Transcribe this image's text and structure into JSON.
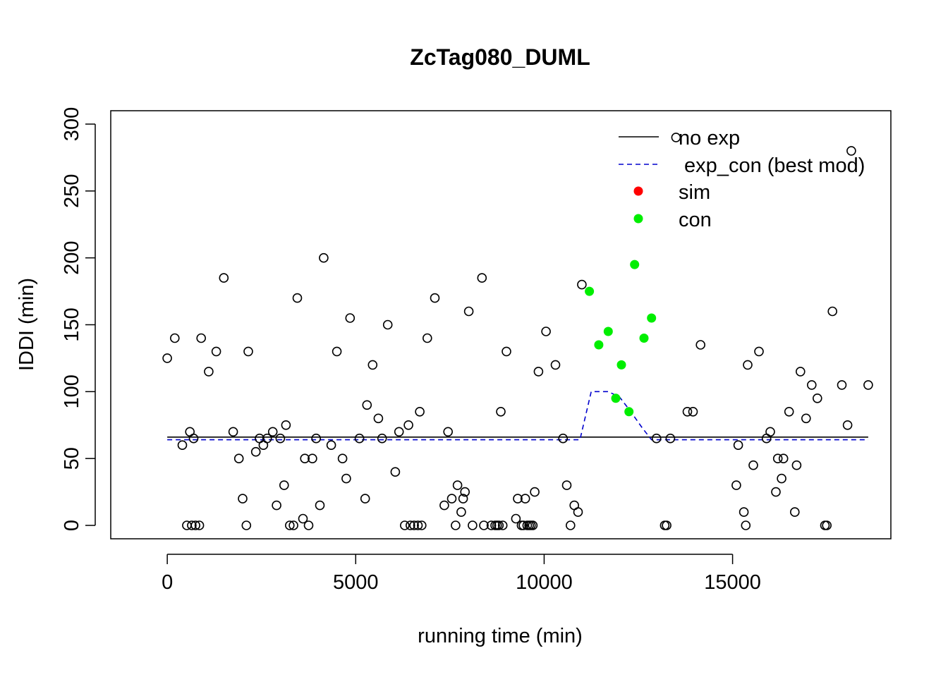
{
  "chart_data": {
    "type": "scatter",
    "title": "ZcTag080_DUML",
    "xlabel": "running time (min)",
    "ylabel": "IDDI (min)",
    "xlim": [
      -1500,
      19200
    ],
    "ylim": [
      -10,
      310
    ],
    "xticks": [
      0,
      5000,
      10000,
      15000
    ],
    "yticks": [
      0,
      50,
      100,
      150,
      200,
      250,
      300
    ],
    "grid": false,
    "legend_position": "top-right",
    "colors": {
      "points": "#000000",
      "no_exp": "#000000",
      "exp_con": "#0000CD",
      "sim": "#FF0000",
      "con": "#00EE00"
    },
    "legend": [
      {
        "label": "no exp",
        "kind": "line-solid",
        "color": "#000000"
      },
      {
        "label": " exp_con (best mod)",
        "kind": "line-dashed",
        "color": "#0000CD"
      },
      {
        "label": "sim",
        "kind": "dot",
        "color": "#FF0000"
      },
      {
        "label": "con",
        "kind": "dot",
        "color": "#00EE00"
      }
    ],
    "series": [
      {
        "name": "no exp",
        "kind": "line",
        "style": "solid",
        "x": [
          0,
          18600
        ],
        "y": [
          66,
          66
        ]
      },
      {
        "name": " exp_con (best mod)",
        "kind": "line",
        "style": "dashed",
        "x": [
          0,
          10950,
          11250,
          11700,
          12000,
          12300,
          12600,
          12850,
          18600
        ],
        "y": [
          64,
          64,
          100,
          100,
          96,
          85,
          73,
          64,
          64
        ]
      },
      {
        "name": "con",
        "kind": "points-filled",
        "x": [
          11200,
          11450,
          11700,
          11900,
          12050,
          12250,
          12400,
          12650,
          12850
        ],
        "y": [
          175,
          135,
          145,
          95,
          120,
          85,
          195,
          140,
          155
        ]
      },
      {
        "kind": "points-open",
        "x": [
          0,
          200,
          400,
          520,
          600,
          650,
          700,
          750,
          850,
          900,
          1100,
          1300,
          1500,
          1750,
          1900,
          2000,
          2100,
          2150,
          2350,
          2450,
          2550,
          2650,
          2800,
          2900,
          3000,
          3100,
          3150,
          3250,
          3350,
          3450,
          3600,
          3650,
          3750,
          3850,
          3950,
          4050,
          4150,
          4350,
          4500,
          4650,
          4750,
          4850,
          5100,
          5250,
          5300,
          5450,
          5600,
          5700,
          5850,
          6050,
          6150,
          6300,
          6400,
          6450,
          6550,
          6650,
          6700,
          6750,
          6900,
          7100,
          7350,
          7450,
          7550,
          7650,
          7700,
          7800,
          7850,
          7900,
          8000,
          8100,
          8350,
          8400,
          8600,
          8700,
          8750,
          8800,
          8850,
          8900,
          9000,
          9250,
          9300,
          9400,
          9450,
          9500,
          9550,
          9600,
          9650,
          9700,
          9750,
          9850,
          10050,
          10300,
          10500,
          10600,
          10700,
          10800,
          10900,
          11000,
          12980,
          13200,
          13250,
          13350,
          13500,
          13800,
          13950,
          14150,
          15100,
          15150,
          15300,
          15350,
          15400,
          15550,
          15700,
          15900,
          16000,
          16150,
          16200,
          16300,
          16350,
          16500,
          16650,
          16700,
          16800,
          16950,
          17100,
          17250,
          17450,
          17500,
          17650,
          17900,
          18050,
          18150,
          18600
        ],
        "y": [
          125,
          140,
          60,
          0,
          70,
          0,
          65,
          0,
          0,
          140,
          115,
          130,
          185,
          70,
          50,
          20,
          0,
          130,
          55,
          65,
          60,
          65,
          70,
          15,
          65,
          30,
          75,
          0,
          0,
          170,
          5,
          50,
          0,
          50,
          65,
          15,
          200,
          60,
          130,
          50,
          35,
          155,
          65,
          20,
          90,
          120,
          80,
          65,
          150,
          40,
          70,
          0,
          75,
          0,
          0,
          0,
          85,
          0,
          140,
          170,
          15,
          70,
          20,
          0,
          30,
          10,
          20,
          25,
          160,
          0,
          185,
          0,
          0,
          0,
          0,
          0,
          85,
          0,
          130,
          5,
          20,
          0,
          0,
          20,
          0,
          0,
          0,
          0,
          25,
          115,
          145,
          120,
          65,
          30,
          0,
          15,
          10,
          180,
          65,
          0,
          0,
          65,
          290,
          85,
          85,
          135,
          30,
          60,
          10,
          0,
          120,
          45,
          130,
          65,
          70,
          25,
          50,
          35,
          50,
          85,
          10,
          45,
          115,
          80,
          105,
          95,
          0,
          0,
          160,
          105,
          75,
          280,
          105
        ]
      }
    ]
  }
}
